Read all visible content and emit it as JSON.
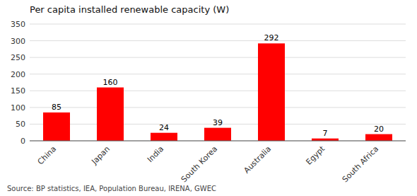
{
  "chart_data": {
    "type": "bar",
    "title": "Per capita installed renewable capacity (W)",
    "categories": [
      "China",
      "Japan",
      "India",
      "South Korea",
      "Australia",
      "Egypt",
      "South Africa"
    ],
    "values": [
      85,
      160,
      24,
      39,
      292,
      7,
      20
    ],
    "color": "#FF0000",
    "ylim": [
      0,
      350
    ],
    "yticks": [
      0,
      50,
      100,
      150,
      200,
      250,
      300,
      350
    ],
    "grid": true,
    "data_labels": true,
    "source": "Source: BP statistics, IEA, Population Bureau, IRENA, GWEC"
  }
}
